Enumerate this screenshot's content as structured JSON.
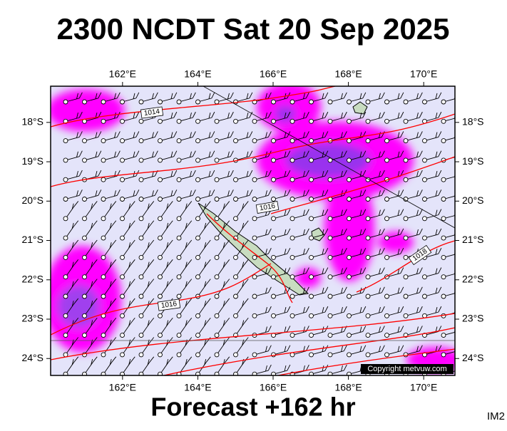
{
  "header": {
    "title": "2300 NCDT Sat 20 Sep 2025"
  },
  "map": {
    "lonlim": [
      160.09,
      170.83
    ],
    "latlim": [
      17.08,
      24.43
    ],
    "lonticks": [
      {
        "value": 162,
        "label": "162°E"
      },
      {
        "value": 164,
        "label": "164°E"
      },
      {
        "value": 166,
        "label": "166°E"
      },
      {
        "value": 168,
        "label": "168°E"
      },
      {
        "value": 170,
        "label": "170°E"
      }
    ],
    "latticks": [
      {
        "value": 18,
        "label": "18°S"
      },
      {
        "value": 19,
        "label": "19°S"
      },
      {
        "value": 20,
        "label": "20°S"
      },
      {
        "value": 21,
        "label": "21°S"
      },
      {
        "value": 22,
        "label": "22°S"
      },
      {
        "value": 23,
        "label": "23°S"
      },
      {
        "value": 24,
        "label": "24°S"
      }
    ],
    "isobar_labels": [
      "1014",
      "1016",
      "1016",
      "1018"
    ],
    "copyright": "Copyright metvuw.com"
  },
  "footer": {
    "text": "Forecast +162 hr",
    "code": "IM2"
  }
}
